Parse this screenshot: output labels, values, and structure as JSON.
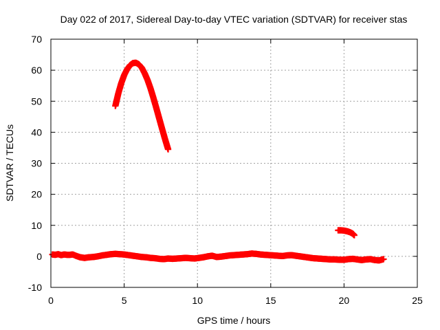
{
  "chart_data": {
    "type": "scatter",
    "title": "Day 022 of 2017, Sidereal Day-to-day VTEC variation (SDTVAR) for receiver stas",
    "xlabel": "GPS time / hours",
    "ylabel": "SDTVAR / TECUs",
    "xlim": [
      0,
      25
    ],
    "ylim": [
      -10,
      70
    ],
    "xticks": [
      0,
      5,
      10,
      15,
      20,
      25
    ],
    "yticks": [
      -10,
      0,
      10,
      20,
      30,
      40,
      50,
      60,
      70
    ],
    "xtick_labels": [
      "0",
      "5",
      "10",
      "15",
      "20",
      "25"
    ],
    "ytick_labels": [
      "-10",
      "0",
      "10",
      "20",
      "30",
      "40",
      "50",
      "60",
      "70"
    ],
    "grid": true,
    "legend": "none",
    "marker": "plus",
    "series": [
      {
        "name": "baseline",
        "color": "#ff0000",
        "x": [
          0.1,
          0.3,
          0.5,
          0.7,
          0.9,
          1.1,
          1.3,
          1.5,
          1.7,
          2.0,
          2.3,
          2.6,
          2.9,
          3.2,
          3.5,
          3.8,
          4.1,
          4.4,
          4.7,
          5.0,
          5.3,
          5.6,
          5.9,
          6.2,
          6.5,
          6.8,
          7.1,
          7.4,
          7.7,
          8.0,
          8.3,
          8.6,
          8.9,
          9.2,
          9.5,
          9.8,
          10.1,
          10.4,
          10.7,
          11.0,
          11.3,
          11.6,
          11.9,
          12.2,
          12.5,
          12.8,
          13.1,
          13.4,
          13.7,
          14.0,
          14.3,
          14.6,
          14.9,
          15.2,
          15.5,
          15.8,
          16.1,
          16.4,
          16.7,
          17.0,
          17.3,
          17.6,
          17.9,
          18.2,
          18.5,
          18.8,
          19.1,
          19.4,
          19.7,
          20.0,
          20.3,
          20.6,
          20.9,
          21.2,
          21.5,
          21.8,
          22.1,
          22.4,
          22.7
        ],
        "y": [
          0.6,
          0.5,
          0.7,
          0.4,
          0.6,
          0.5,
          0.5,
          0.6,
          0.2,
          -0.3,
          -0.5,
          -0.3,
          -0.2,
          0.0,
          0.3,
          0.5,
          0.7,
          0.8,
          0.7,
          0.6,
          0.4,
          0.2,
          0.0,
          -0.2,
          -0.3,
          -0.5,
          -0.6,
          -0.8,
          -0.9,
          -0.7,
          -0.8,
          -0.7,
          -0.6,
          -0.5,
          -0.6,
          -0.7,
          -0.5,
          -0.3,
          0.0,
          0.2,
          -0.2,
          -0.1,
          0.1,
          0.3,
          0.4,
          0.5,
          0.6,
          0.7,
          0.9,
          0.8,
          0.6,
          0.5,
          0.4,
          0.3,
          0.2,
          0.1,
          0.3,
          0.4,
          0.2,
          0.0,
          -0.2,
          -0.4,
          -0.6,
          -0.7,
          -0.8,
          -0.9,
          -1.0,
          -1.0,
          -1.1,
          -1.1,
          -0.9,
          -0.8,
          -1.0,
          -1.2,
          -1.0,
          -0.9,
          -1.2,
          -1.3,
          -0.9
        ]
      },
      {
        "name": "arc",
        "color": "#ff0000",
        "x": [
          4.4,
          4.6,
          4.8,
          5.0,
          5.2,
          5.4,
          5.6,
          5.8,
          6.0,
          6.2,
          6.4,
          6.6,
          6.8,
          7.0,
          7.2,
          7.4,
          7.6,
          7.8,
          8.0
        ],
        "y": [
          48.5,
          52.5,
          55.8,
          58.4,
          60.3,
          61.6,
          62.3,
          62.4,
          61.9,
          60.8,
          59.0,
          56.8,
          54.1,
          51.0,
          47.7,
          44.3,
          40.9,
          37.6,
          34.5
        ]
      },
      {
        "name": "late segment",
        "color": "#ff0000",
        "x": [
          19.6,
          19.8,
          20.0,
          20.2,
          20.4,
          20.6,
          20.7
        ],
        "y": [
          8.4,
          8.4,
          8.3,
          8.1,
          7.8,
          7.3,
          6.8
        ]
      }
    ]
  }
}
